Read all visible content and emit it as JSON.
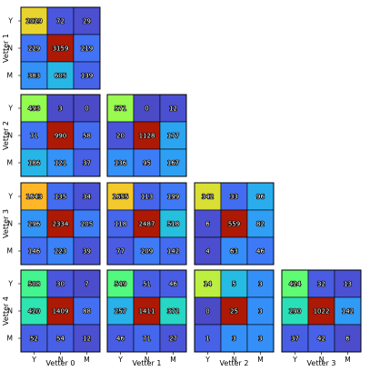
{
  "chart_data": {
    "type": "heatmap",
    "title": "",
    "row_labels": [
      "Vetter 1",
      "Vetter 2",
      "Vetter 3",
      "Vetter 4"
    ],
    "col_labels": [
      "Vetter 0",
      "Vetter 1",
      "Vetter 2",
      "Vetter 3"
    ],
    "categories": [
      "Y",
      "N",
      "M"
    ],
    "colormap": "turbo",
    "grid": false,
    "panels": [
      {
        "row": 0,
        "col": 0,
        "values": [
          [
            2029,
            72,
            29
          ],
          [
            229,
            3159,
            219
          ],
          [
            383,
            605,
            139
          ]
        ]
      },
      {
        "row": 1,
        "col": 0,
        "values": [
          [
            493,
            3,
            0
          ],
          [
            71,
            990,
            58
          ],
          [
            186,
            121,
            37
          ]
        ]
      },
      {
        "row": 1,
        "col": 1,
        "values": [
          [
            571,
            0,
            12
          ],
          [
            20,
            1128,
            177
          ],
          [
            136,
            95,
            167
          ]
        ]
      },
      {
        "row": 2,
        "col": 0,
        "values": [
          [
            1643,
            135,
            34
          ],
          [
            296,
            2334,
            205
          ],
          [
            146,
            223,
            39
          ]
        ]
      },
      {
        "row": 2,
        "col": 1,
        "values": [
          [
            1655,
            113,
            199
          ],
          [
            118,
            2487,
            518
          ],
          [
            77,
            209,
            142
          ]
        ]
      },
      {
        "row": 2,
        "col": 2,
        "values": [
          [
            342,
            33,
            96
          ],
          [
            6,
            559,
            82
          ],
          [
            4,
            63,
            46
          ]
        ]
      },
      {
        "row": 3,
        "col": 0,
        "values": [
          [
            508,
            30,
            7
          ],
          [
            420,
            1409,
            88
          ],
          [
            52,
            54,
            12
          ]
        ]
      },
      {
        "row": 3,
        "col": 1,
        "values": [
          [
            549,
            51,
            46
          ],
          [
            257,
            1411,
            372
          ],
          [
            46,
            71,
            27
          ]
        ]
      },
      {
        "row": 3,
        "col": 2,
        "values": [
          [
            14,
            5,
            3
          ],
          [
            0,
            25,
            3
          ],
          [
            1,
            3,
            3
          ]
        ]
      },
      {
        "row": 3,
        "col": 3,
        "values": [
          [
            424,
            32,
            13
          ],
          [
            290,
            1022,
            142
          ],
          [
            37,
            42,
            6
          ]
        ]
      }
    ]
  }
}
